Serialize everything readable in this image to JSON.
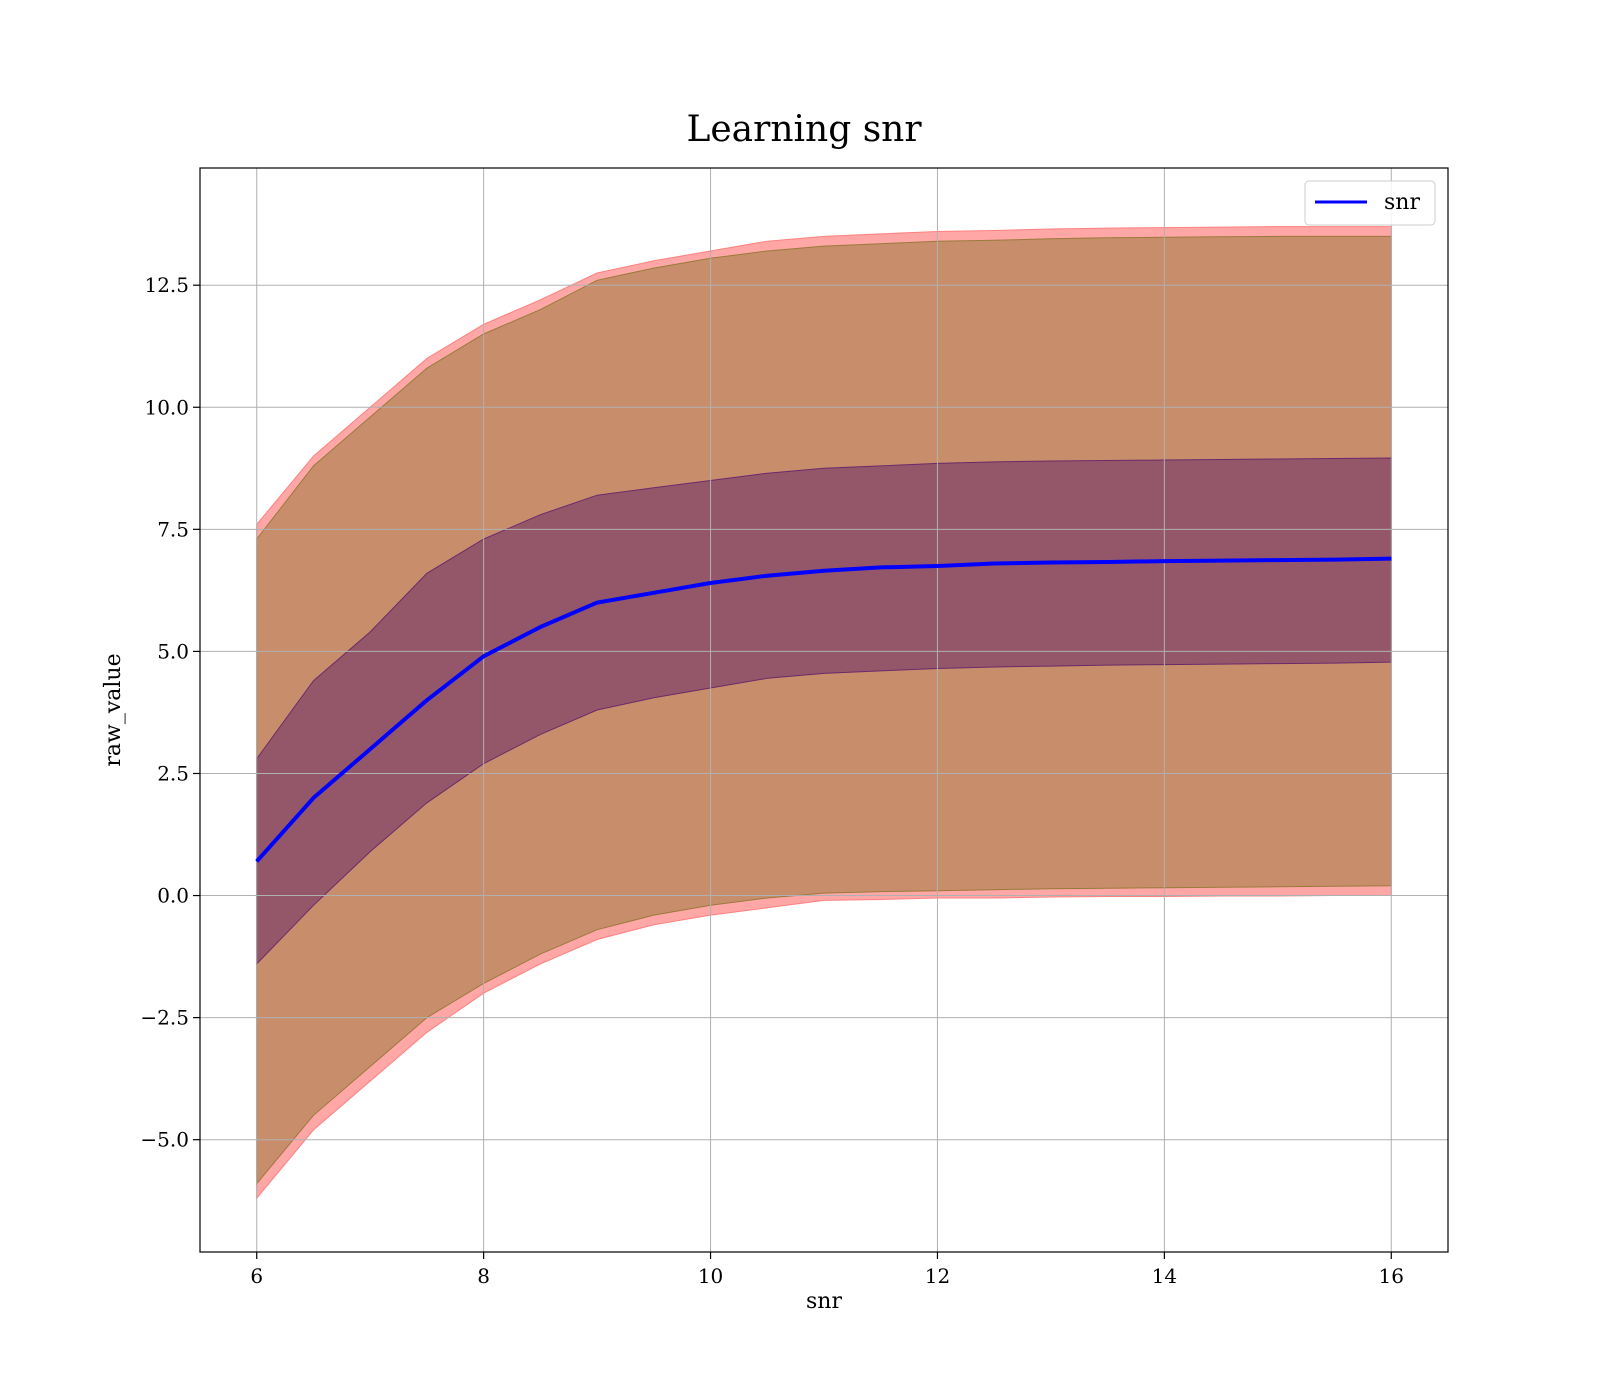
{
  "chart_data": {
    "type": "area",
    "title": "Learning snr",
    "xlabel": "snr",
    "ylabel": "raw_value",
    "xlim": [
      5.5,
      16.5
    ],
    "ylim": [
      -7.3,
      14.9
    ],
    "xticks": [
      6,
      8,
      10,
      12,
      14,
      16
    ],
    "xtick_labels": [
      "6",
      "8",
      "10",
      "12",
      "14",
      "16"
    ],
    "yticks": [
      -5.0,
      -2.5,
      0.0,
      2.5,
      5.0,
      7.5,
      10.0,
      12.5
    ],
    "ytick_labels": [
      "−5.0",
      "−2.5",
      "0.0",
      "2.5",
      "5.0",
      "7.5",
      "10.0",
      "12.5"
    ],
    "grid": true,
    "legend_position": "top-right",
    "colors": {
      "line": "#0000ff",
      "outer_band": "#ff8080",
      "middle_band": "#9a7a3a",
      "inner_band": "#6a2a6a"
    },
    "x": [
      6.0,
      6.5,
      7.0,
      7.5,
      8.0,
      8.5,
      9.0,
      9.5,
      10.0,
      10.5,
      11.0,
      11.5,
      12.0,
      12.5,
      13.0,
      13.5,
      14.0,
      14.5,
      15.0,
      15.5,
      16.0
    ],
    "series": [
      {
        "name": "snr",
        "values": [
          0.7,
          2.0,
          3.0,
          4.0,
          4.9,
          5.5,
          6.0,
          6.2,
          6.4,
          6.55,
          6.65,
          6.72,
          6.75,
          6.8,
          6.82,
          6.83,
          6.85,
          6.86,
          6.87,
          6.88,
          6.9
        ]
      }
    ],
    "bands": [
      {
        "kind": "outer",
        "upper": [
          7.6,
          9.0,
          10.0,
          11.0,
          11.7,
          12.2,
          12.75,
          13.0,
          13.2,
          13.4,
          13.5,
          13.55,
          13.6,
          13.62,
          13.65,
          13.67,
          13.68,
          13.69,
          13.7,
          13.7,
          13.7
        ],
        "lower": [
          -6.2,
          -4.8,
          -3.8,
          -2.8,
          -2.0,
          -1.4,
          -0.9,
          -0.6,
          -0.4,
          -0.25,
          -0.1,
          -0.08,
          -0.05,
          -0.05,
          -0.03,
          -0.02,
          -0.02,
          -0.01,
          -0.01,
          0.0,
          0.0
        ]
      },
      {
        "kind": "middle",
        "upper": [
          7.3,
          8.8,
          9.8,
          10.8,
          11.5,
          12.0,
          12.6,
          12.85,
          13.05,
          13.2,
          13.3,
          13.35,
          13.4,
          13.42,
          13.45,
          13.47,
          13.48,
          13.49,
          13.5,
          13.5,
          13.5
        ],
        "lower": [
          -5.9,
          -4.5,
          -3.5,
          -2.5,
          -1.8,
          -1.2,
          -0.7,
          -0.4,
          -0.2,
          -0.05,
          0.05,
          0.08,
          0.1,
          0.12,
          0.14,
          0.15,
          0.16,
          0.17,
          0.18,
          0.19,
          0.2
        ]
      },
      {
        "kind": "inner",
        "upper": [
          2.8,
          4.4,
          5.4,
          6.6,
          7.3,
          7.8,
          8.2,
          8.35,
          8.5,
          8.65,
          8.75,
          8.8,
          8.85,
          8.88,
          8.9,
          8.91,
          8.92,
          8.93,
          8.94,
          8.95,
          8.96
        ],
        "lower": [
          -1.4,
          -0.2,
          0.9,
          1.9,
          2.7,
          3.3,
          3.8,
          4.05,
          4.25,
          4.45,
          4.55,
          4.6,
          4.65,
          4.68,
          4.7,
          4.72,
          4.73,
          4.74,
          4.75,
          4.76,
          4.78
        ]
      }
    ]
  }
}
